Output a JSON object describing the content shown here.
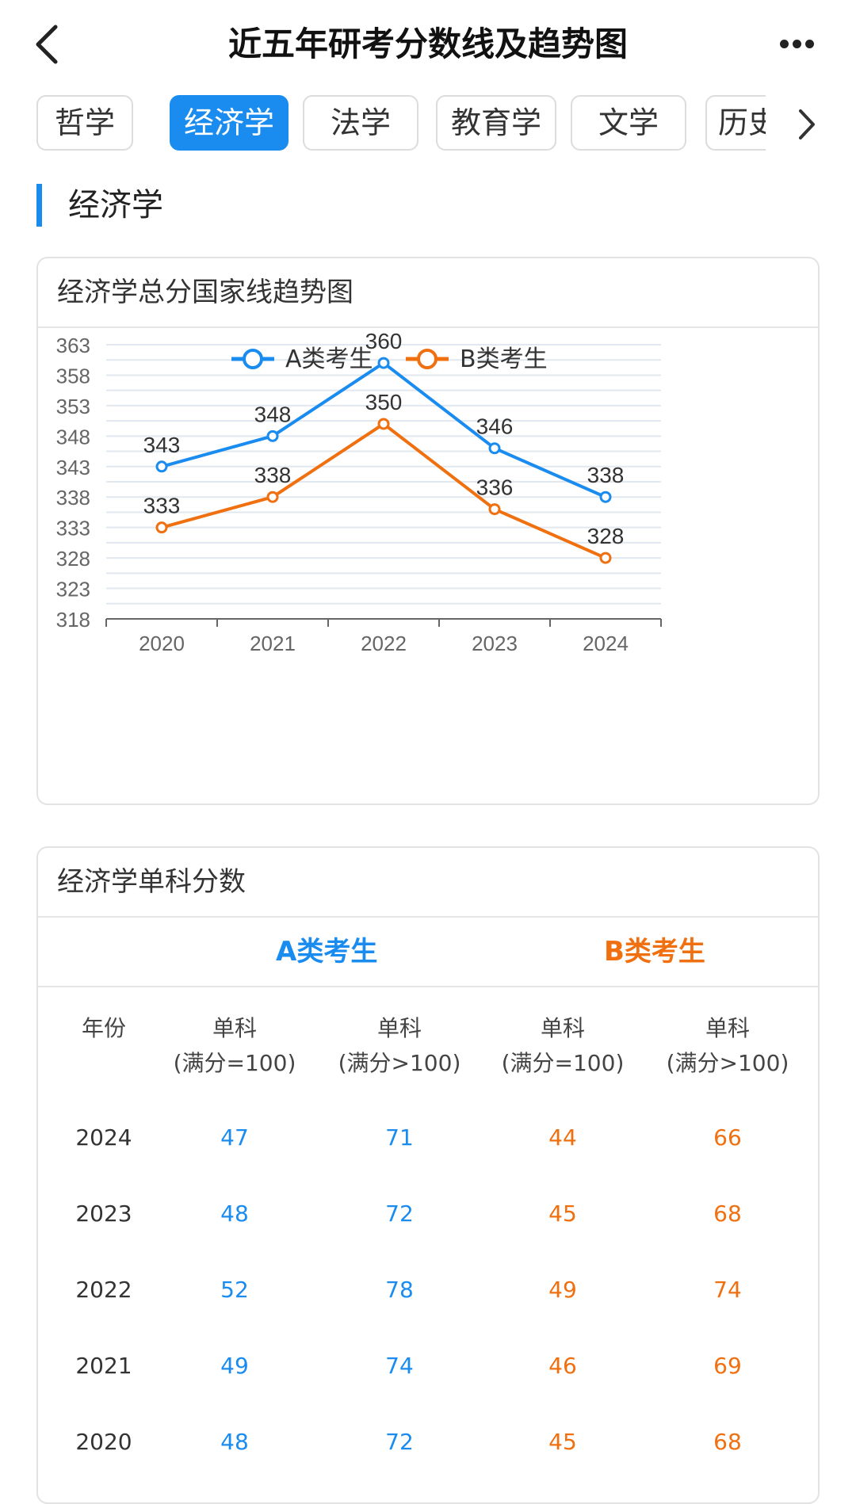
{
  "header": {
    "title": "近五年研考分数线及趋势图"
  },
  "tabs": [
    {
      "label": "哲学",
      "active": false
    },
    {
      "label": "经济学",
      "active": true
    },
    {
      "label": "法学",
      "active": false
    },
    {
      "label": "教育学",
      "active": false
    },
    {
      "label": "文学",
      "active": false
    },
    {
      "label": "历史",
      "active": false
    }
  ],
  "section": {
    "title": "经济学"
  },
  "chart_card": {
    "title": "经济学总分国家线趋势图"
  },
  "chart_data": {
    "type": "line",
    "title": "经济学总分国家线趋势图",
    "categories": [
      "2020",
      "2021",
      "2022",
      "2023",
      "2024"
    ],
    "series": [
      {
        "name": "A类考生",
        "color": "#1a8cf0",
        "values": [
          343,
          348,
          360,
          346,
          338
        ]
      },
      {
        "name": "B类考生",
        "color": "#f07010",
        "values": [
          333,
          338,
          350,
          336,
          328
        ]
      }
    ],
    "y_ticks": [
      363,
      358,
      353,
      348,
      343,
      338,
      333,
      328,
      323,
      318
    ],
    "ylim": [
      318,
      363
    ],
    "legend": "top-center",
    "grid": true
  },
  "table_card": {
    "title": "经济学单科分数",
    "group_a": "A类考生",
    "group_b": "B类考生",
    "headers": [
      {
        "l1": "年份",
        "l2": ""
      },
      {
        "l1": "单科",
        "l2": "(满分=100)"
      },
      {
        "l1": "单科",
        "l2": "(满分>100)"
      },
      {
        "l1": "单科",
        "l2": "(满分=100)"
      },
      {
        "l1": "单科",
        "l2": "(满分>100)"
      }
    ],
    "rows": [
      {
        "year": "2024",
        "a1": "47",
        "a2": "71",
        "b1": "44",
        "b2": "66"
      },
      {
        "year": "2023",
        "a1": "48",
        "a2": "72",
        "b1": "45",
        "b2": "68"
      },
      {
        "year": "2022",
        "a1": "52",
        "a2": "78",
        "b1": "49",
        "b2": "74"
      },
      {
        "year": "2021",
        "a1": "49",
        "a2": "74",
        "b1": "46",
        "b2": "69"
      },
      {
        "year": "2020",
        "a1": "48",
        "a2": "72",
        "b1": "45",
        "b2": "68"
      }
    ]
  }
}
